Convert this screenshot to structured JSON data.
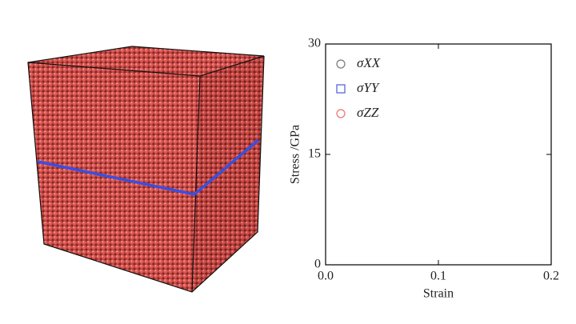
{
  "chart_data": {
    "type": "scatter",
    "xlabel": "Strain",
    "ylabel": "Stress /GPa",
    "x": [],
    "series": [
      {
        "name": "σXX",
        "color": "#777777",
        "marker": "circle",
        "values": []
      },
      {
        "name": "σYY",
        "color": "#4a5bd4",
        "marker": "square",
        "values": []
      },
      {
        "name": "σZZ",
        "color": "#e8736c",
        "marker": "circle",
        "values": []
      }
    ],
    "xlim": [
      0,
      0.2
    ],
    "xticks": [
      {
        "value": 0,
        "label": "0.0"
      },
      0.1,
      0.2
    ],
    "ylim": [
      0,
      30
    ],
    "yticks": [
      0,
      15,
      30
    ]
  }
}
